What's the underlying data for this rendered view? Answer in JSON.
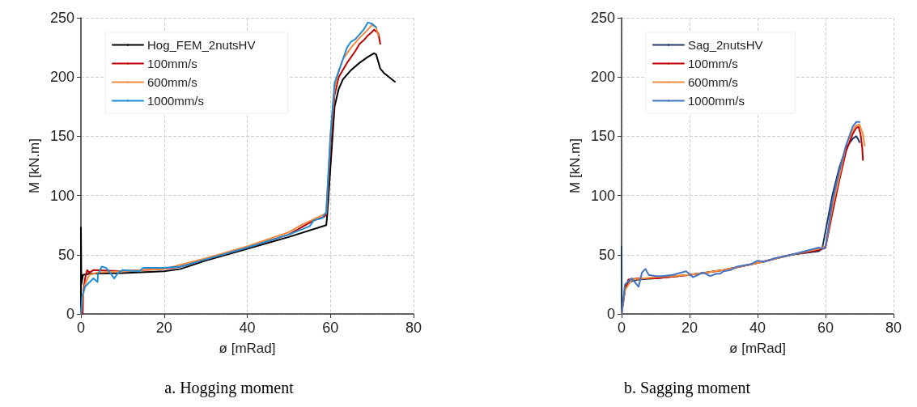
{
  "chart_data": [
    {
      "type": "line",
      "xlabel": "ø [mRad]",
      "ylabel": "M [kN.m]",
      "annotations": [
        "a. Hogging moment"
      ],
      "xlim": [
        0,
        80
      ],
      "ylim": [
        0,
        250
      ],
      "xticks": [
        0,
        20,
        40,
        60,
        80
      ],
      "yticks": [
        0,
        50,
        100,
        150,
        200,
        250
      ],
      "grid": true,
      "legend": "top left",
      "marker": "none",
      "line_style": "solid",
      "series": [
        {
          "name": "Hog_FEM_2nutsHV",
          "color": "#000000",
          "x": [
            0,
            0,
            0.1,
            0.5,
            2,
            10,
            20,
            24,
            30,
            40,
            50,
            59,
            59.2,
            61,
            62,
            63,
            65,
            67,
            69,
            70.5,
            71,
            72,
            73,
            75.5
          ],
          "values": [
            0,
            73,
            25,
            33,
            34,
            34.5,
            36,
            38,
            45,
            55,
            65,
            75,
            82,
            175,
            190,
            198,
            206,
            212,
            217,
            220,
            219,
            207,
            203,
            196
          ]
        },
        {
          "name": "100mm/s",
          "color": "#c00000",
          "x": [
            0.4,
            0.6,
            1,
            1.5,
            2,
            3,
            10,
            20,
            24,
            30,
            40,
            50,
            54,
            56,
            58.5,
            59,
            60,
            61,
            62,
            64,
            66,
            67,
            68,
            69,
            70,
            70.5,
            71.5,
            72
          ],
          "values": [
            0,
            20,
            30,
            37,
            35,
            37,
            36,
            38,
            40,
            46,
            56,
            67,
            75,
            79,
            82,
            84,
            140,
            185,
            200,
            212,
            222,
            228,
            231,
            235,
            238,
            240,
            237,
            228
          ]
        },
        {
          "name": "600mm/s",
          "color": "#f4893e",
          "x": [
            0,
            0.5,
            1,
            2,
            4,
            10,
            20,
            30,
            40,
            50,
            53,
            56,
            59,
            60,
            61,
            62,
            63,
            65,
            67,
            69,
            70,
            71,
            71.5
          ],
          "values": [
            0,
            15,
            25,
            33,
            35,
            36,
            38,
            47,
            57,
            69,
            75,
            80,
            85,
            150,
            190,
            205,
            215,
            225,
            233,
            240,
            244,
            242,
            235
          ]
        },
        {
          "name": "1000mm/s",
          "color": "#1f8dd6",
          "x": [
            0,
            0.3,
            1,
            3,
            4,
            4.1,
            5,
            6,
            7,
            8,
            9,
            10,
            14,
            15,
            20,
            24,
            30,
            40,
            50,
            55,
            56,
            58,
            59,
            60,
            61,
            62,
            63,
            64,
            65,
            66,
            68,
            69,
            70,
            71
          ],
          "values": [
            0,
            15,
            23,
            30,
            27,
            33,
            40,
            39,
            35,
            30,
            35,
            37,
            36,
            39,
            39,
            40,
            46,
            56,
            67,
            74,
            79,
            81,
            86,
            150,
            195,
            205,
            215,
            225,
            230,
            232,
            240,
            246,
            245,
            242
          ]
        }
      ]
    },
    {
      "type": "line",
      "xlabel": "ø [mRad]",
      "ylabel": "M [kN.m]",
      "annotations": [
        "b. Sagging moment"
      ],
      "xlim": [
        0,
        80
      ],
      "ylim": [
        0,
        250
      ],
      "xticks": [
        0,
        20,
        40,
        60,
        80
      ],
      "yticks": [
        0,
        50,
        100,
        150,
        200,
        250
      ],
      "grid": true,
      "legend": "top left",
      "marker": "none",
      "line_style": "solid",
      "series": [
        {
          "name": "Sag_2nutsHV",
          "color": "#1f3864",
          "x": [
            0,
            0.05,
            0.5,
            1,
            2,
            5,
            10,
            20,
            30,
            40,
            50,
            58,
            59,
            60,
            62,
            64,
            66,
            68,
            69,
            69.5,
            70
          ],
          "values": [
            57,
            3,
            10,
            22,
            27,
            29,
            30,
            33,
            37,
            43,
            50,
            53,
            55,
            70,
            100,
            123,
            140,
            148,
            150,
            148,
            145
          ]
        },
        {
          "name": "100mm/s",
          "color": "#c00000",
          "x": [
            0,
            1,
            2,
            5,
            10,
            20,
            30,
            40,
            50,
            58,
            60,
            62,
            64,
            66,
            68,
            69,
            69.7,
            70.3,
            70.8,
            71
          ],
          "values": [
            0,
            20,
            29,
            30,
            30,
            33,
            37,
            43,
            50,
            54,
            56,
            85,
            112,
            137,
            152,
            157,
            158,
            152,
            140,
            130
          ]
        },
        {
          "name": "600mm/s",
          "color": "#f28e3c",
          "x": [
            0,
            1,
            3,
            10,
            20,
            30,
            40,
            50,
            58,
            60,
            62,
            64,
            66,
            68,
            69,
            70,
            71,
            71.5
          ],
          "values": [
            0,
            20,
            29,
            31,
            33,
            37,
            43,
            50,
            55,
            57,
            90,
            115,
            142,
            155,
            159,
            160,
            152,
            142
          ]
        },
        {
          "name": "1000mm/s",
          "color": "#4472c4",
          "x": [
            0,
            1,
            3,
            5,
            6,
            7,
            8,
            10,
            12,
            15,
            19,
            21,
            24,
            26,
            28,
            29,
            30,
            32,
            34,
            38,
            40,
            42,
            45,
            50,
            58,
            59.5,
            60,
            62,
            64,
            66,
            68,
            69,
            70
          ],
          "values": [
            0,
            25,
            30,
            23,
            35,
            38,
            33,
            32,
            32,
            33,
            36,
            31,
            35,
            32,
            34,
            34,
            36,
            37,
            40,
            42,
            45,
            44,
            47,
            50,
            56,
            55,
            57,
            95,
            120,
            142,
            158,
            162,
            162
          ]
        }
      ]
    }
  ]
}
